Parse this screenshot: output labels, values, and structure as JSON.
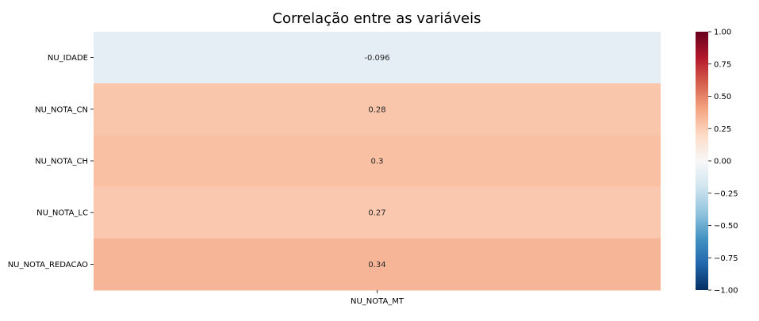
{
  "chart_data": {
    "type": "heatmap",
    "title": "Correlação entre as variáveis",
    "x_categories": [
      "NU_NOTA_MT"
    ],
    "y_categories": [
      "NU_IDADE",
      "NU_NOTA_CN",
      "NU_NOTA_CH",
      "NU_NOTA_LC",
      "NU_NOTA_REDACAO"
    ],
    "values": [
      [
        -0.096
      ],
      [
        0.28
      ],
      [
        0.3
      ],
      [
        0.27
      ],
      [
        0.34
      ]
    ],
    "cell_labels": [
      [
        "-0.096"
      ],
      [
        "0.28"
      ],
      [
        "0.3"
      ],
      [
        "0.27"
      ],
      [
        "0.34"
      ]
    ],
    "colormap": "RdBu_r",
    "vmin": -1.0,
    "vmax": 1.0,
    "colorbar_ticks": [
      1.0,
      0.75,
      0.5,
      0.25,
      0.0,
      -0.25,
      -0.5,
      -0.75,
      -1.0
    ],
    "colorbar_tick_labels": [
      "1.00",
      "0.75",
      "0.50",
      "0.25",
      "0.00",
      "−0.25",
      "−0.50",
      "−0.75",
      "−1.00"
    ]
  }
}
